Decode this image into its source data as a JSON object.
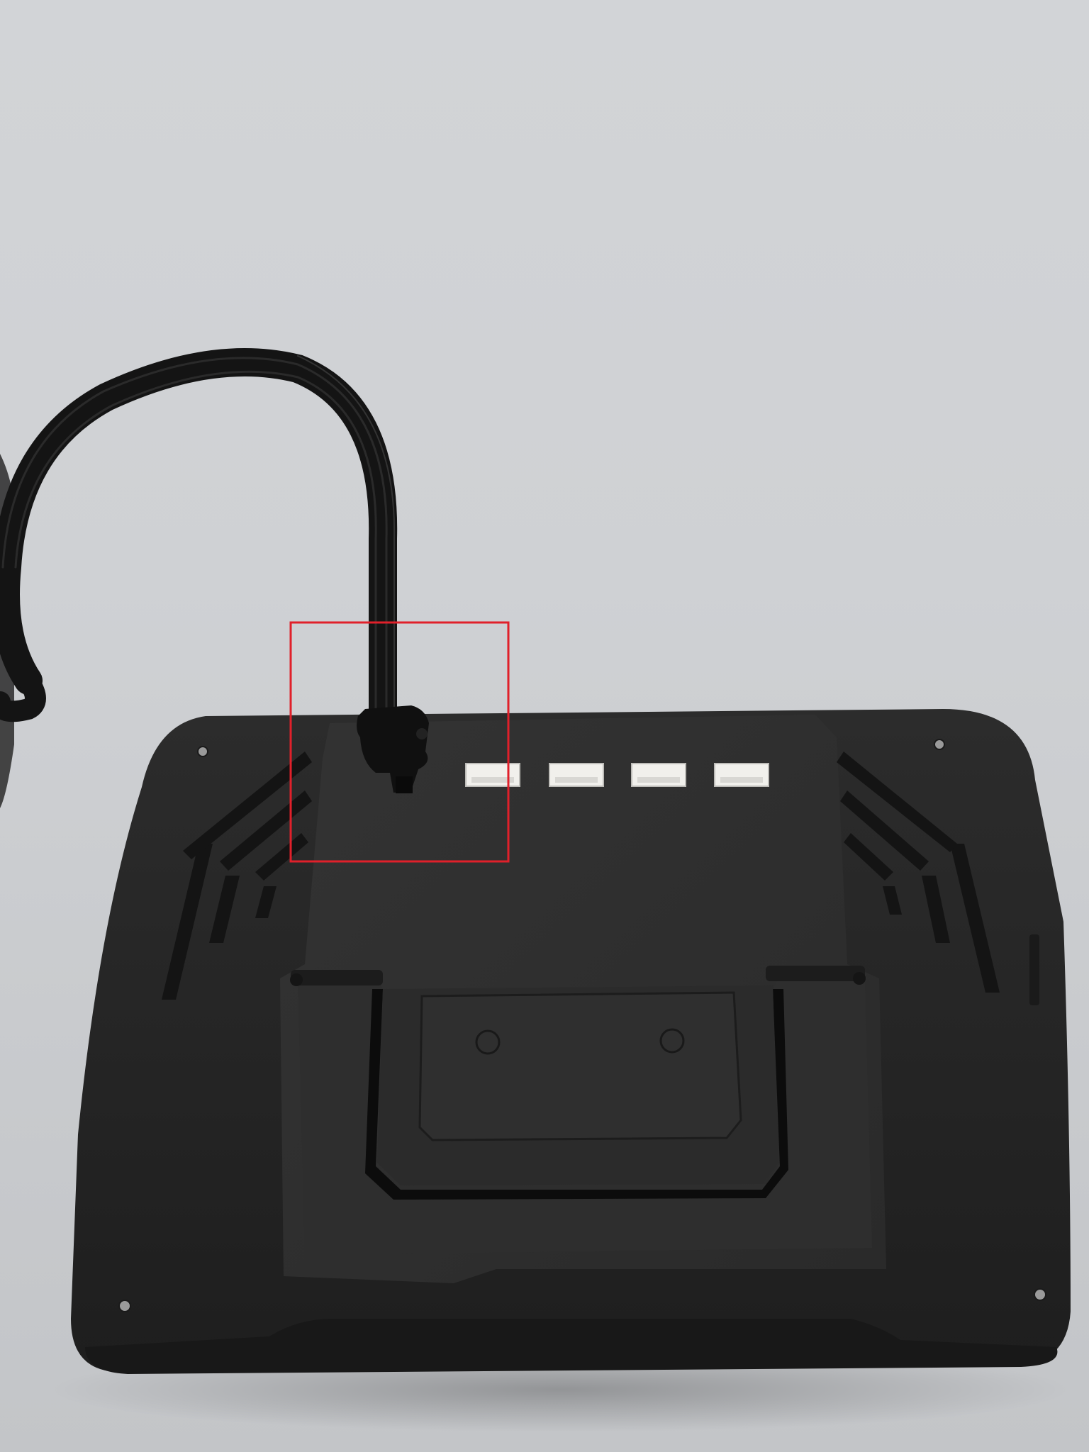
{
  "scene": {
    "subject": "display-backplate",
    "ports_in_use": 1
  },
  "colors": {
    "surface": "#cfd1d4",
    "device": "#262626",
    "device_dark": "#111111",
    "port": "#f1f0ec",
    "cable": "#1a1a1a",
    "highlight": "#e0202a"
  },
  "ports": [
    {
      "label": "",
      "state": "occupied"
    },
    {
      "label": "",
      "state": "empty"
    },
    {
      "label": "",
      "state": "empty"
    },
    {
      "label": "",
      "state": "empty"
    },
    {
      "label": "",
      "state": "empty"
    }
  ]
}
